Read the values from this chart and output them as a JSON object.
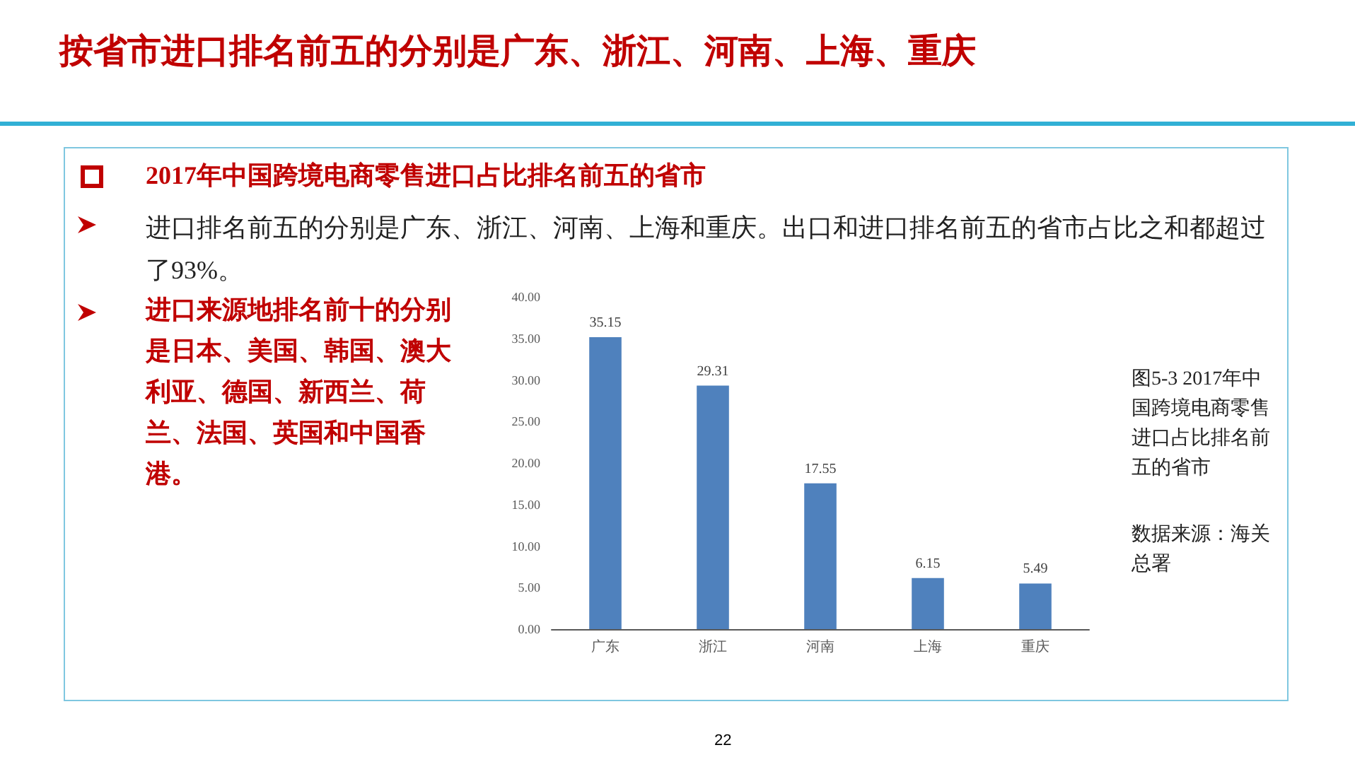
{
  "chart_data": {
    "type": "bar",
    "title": "按省市进口排名前五的分别是广东、浙江、河南、上海、重庆",
    "categories": [
      "广东",
      "浙江",
      "河南",
      "上海",
      "重庆"
    ],
    "values": [
      35.15,
      29.31,
      17.55,
      6.15,
      5.49
    ],
    "color": "#4f81bd",
    "data_labels": true,
    "ylim": [
      0,
      40
    ],
    "yticks": [
      {
        "value": 0,
        "label": "0.00"
      },
      {
        "value": 5,
        "label": "5.00"
      },
      {
        "value": 10,
        "label": "10.00"
      },
      {
        "value": 15,
        "label": "15.00"
      },
      {
        "value": 20,
        "label": "20.00"
      },
      {
        "value": 25,
        "label": "25.00"
      },
      {
        "value": 30,
        "label": "30.00"
      },
      {
        "value": 35,
        "label": "35.00"
      },
      {
        "value": 40,
        "label": "40.00"
      }
    ],
    "grid": false,
    "annotations": [
      "2017年中国跨境电商零售进口占比排名前五的省市",
      "进口排名前五的分别是广东、浙江、河南、上海和重庆。出口和进口排名前五的省市占比之和都超过了93%。",
      "进口来源地排名前十的分别是日本、美国、韩国、澳大利亚、德国、新西兰、荷兰、法国、英国和中国香港。",
      "图5-3 2017年中国跨境电商零售进口占比排名前五的省市",
      "数据来源：海关总署",
      "22"
    ]
  }
}
